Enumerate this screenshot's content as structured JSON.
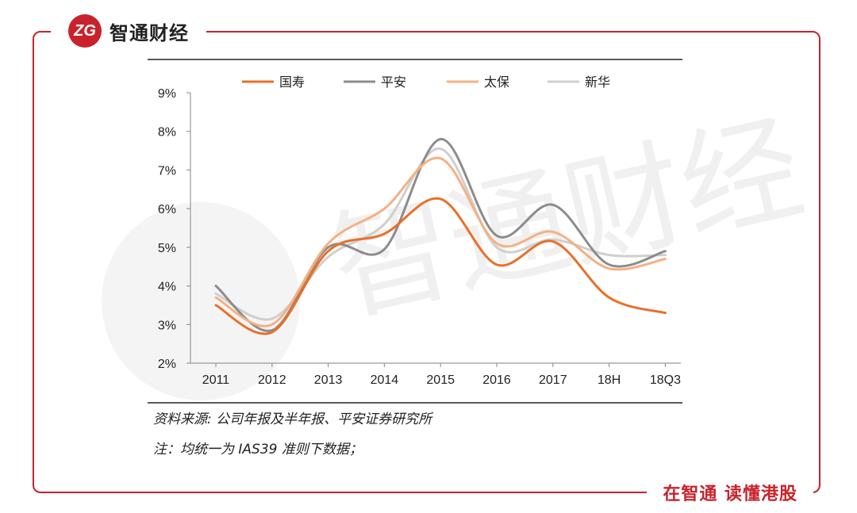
{
  "brand": {
    "logo_text": "ZG",
    "name": "智通财经",
    "slogan": "在智通 读懂港股"
  },
  "watermark": "智通财经",
  "colors": {
    "accent": "#c8232c"
  },
  "notes": {
    "source": "资料来源: 公司年报及半年报、平安证券研究所",
    "note": "注：均统一为 IAS39 准则下数据；"
  },
  "chart_data": {
    "type": "line",
    "title": "",
    "xlabel": "",
    "ylabel": "",
    "categories": [
      "2011",
      "2012",
      "2013",
      "2014",
      "2015",
      "2016",
      "2017",
      "18H",
      "18Q3"
    ],
    "ylim": [
      2,
      9
    ],
    "yticks": [
      "2%",
      "3%",
      "4%",
      "5%",
      "6%",
      "7%",
      "8%",
      "9%"
    ],
    "legend_position": "top",
    "grid": false,
    "series": [
      {
        "name": "国寿",
        "color": "#e8702a",
        "values": [
          3.5,
          2.8,
          4.9,
          5.35,
          6.25,
          4.55,
          5.15,
          3.7,
          3.3
        ]
      },
      {
        "name": "平安",
        "color": "#8c8c8c",
        "values": [
          4.0,
          2.85,
          5.0,
          4.95,
          7.8,
          5.3,
          6.1,
          4.55,
          4.9
        ]
      },
      {
        "name": "太保",
        "color": "#f4b183",
        "values": [
          3.7,
          3.0,
          5.1,
          6.0,
          7.3,
          5.1,
          5.4,
          4.45,
          4.7
        ]
      },
      {
        "name": "新华",
        "color": "#cfcfcf",
        "values": [
          3.8,
          3.15,
          4.75,
          5.6,
          7.55,
          5.0,
          5.2,
          4.8,
          4.8
        ]
      }
    ]
  }
}
